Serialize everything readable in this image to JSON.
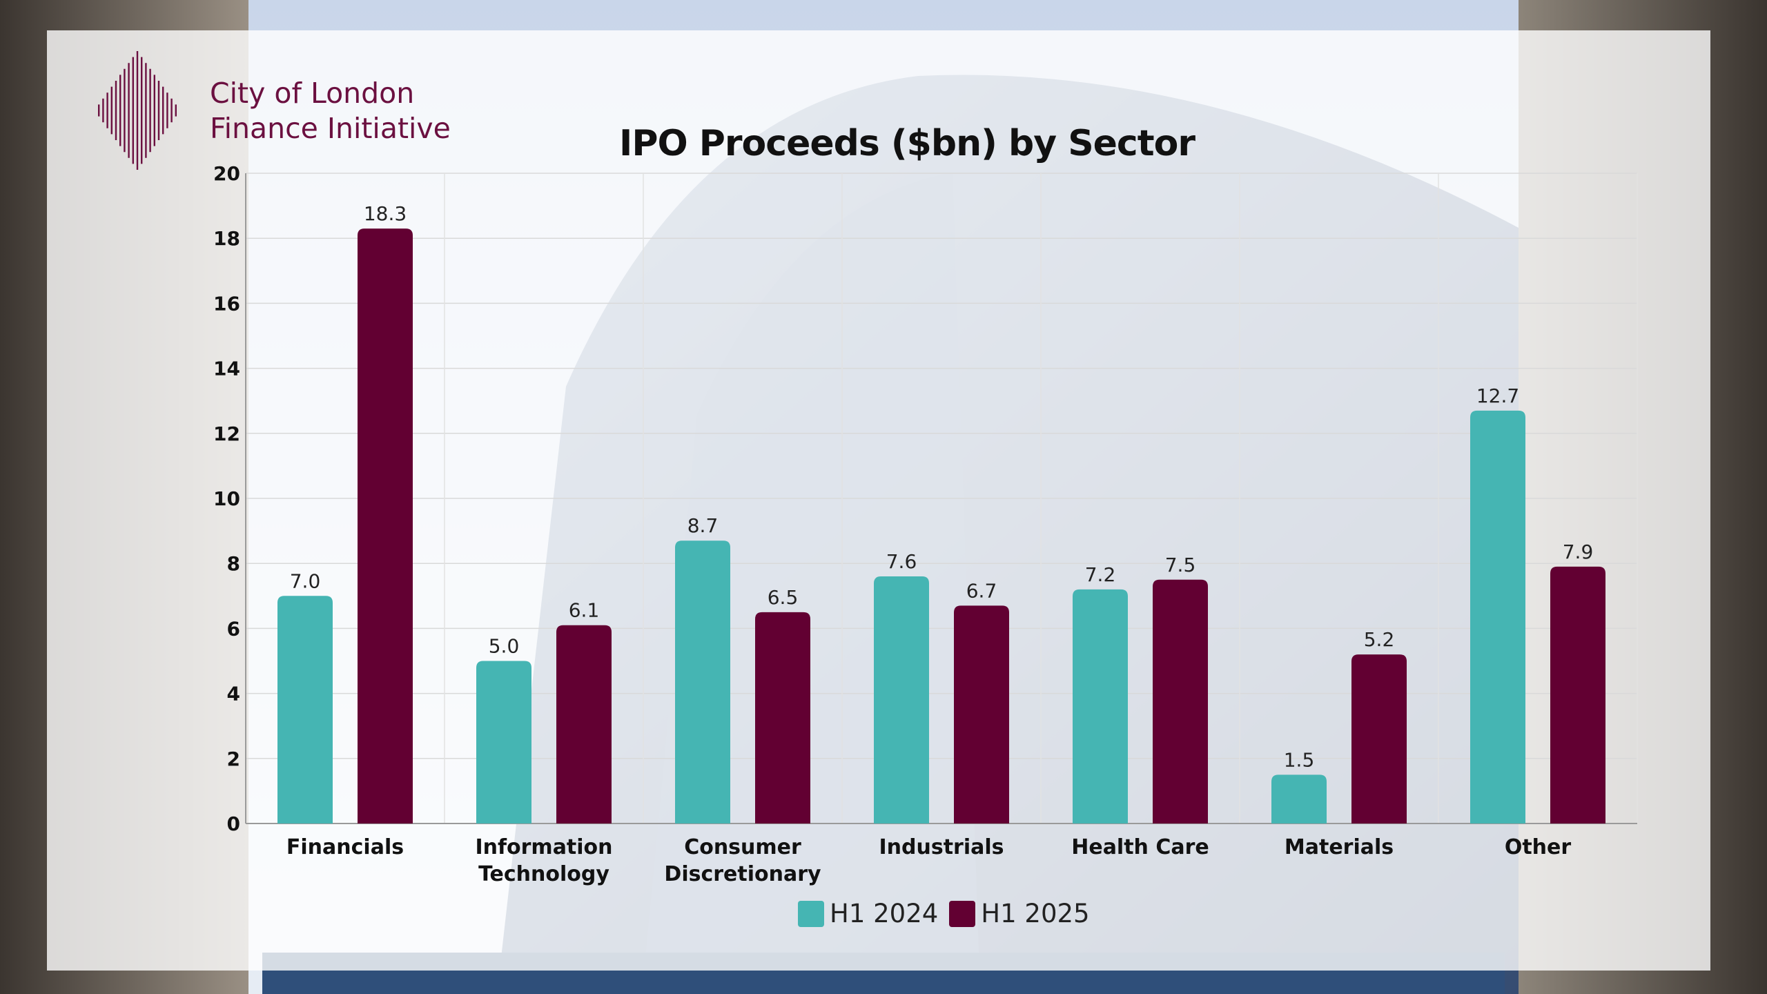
{
  "brand": {
    "line1": "City of London",
    "line2": "Finance Initiative",
    "logo_icon": "diamond-barcode-logo",
    "color": "#6b1040"
  },
  "colors": {
    "h1_2024": "#45b5b3",
    "h1_2025": "#620032"
  },
  "chart_data": {
    "type": "bar",
    "title": "IPO Proceeds ($bn) by Sector",
    "xlabel": "",
    "ylabel": "",
    "ylim": [
      0,
      20
    ],
    "yticks": [
      0,
      2,
      4,
      6,
      8,
      10,
      12,
      14,
      16,
      18,
      20
    ],
    "grid": true,
    "legend_position": "bottom",
    "categories": [
      [
        "Financials"
      ],
      [
        "Information",
        "Technology"
      ],
      [
        "Consumer",
        "Discretionary"
      ],
      [
        "Industrials"
      ],
      [
        "Health Care"
      ],
      [
        "Materials"
      ],
      [
        "Other"
      ]
    ],
    "series": [
      {
        "name": "H1 2024",
        "color": "#45b5b3",
        "values": [
          7.0,
          5.0,
          8.7,
          7.6,
          7.2,
          1.5,
          12.7
        ],
        "labels": [
          "7.0",
          "5.0",
          "8.7",
          "7.6",
          "7.2",
          "1.5",
          "12.7"
        ]
      },
      {
        "name": "H1 2025",
        "color": "#620032",
        "values": [
          18.3,
          6.1,
          6.5,
          6.7,
          7.5,
          5.2,
          7.9
        ],
        "labels": [
          "18.3",
          "6.1",
          "6.5",
          "6.7",
          "7.5",
          "5.2",
          "7.9"
        ]
      }
    ]
  }
}
